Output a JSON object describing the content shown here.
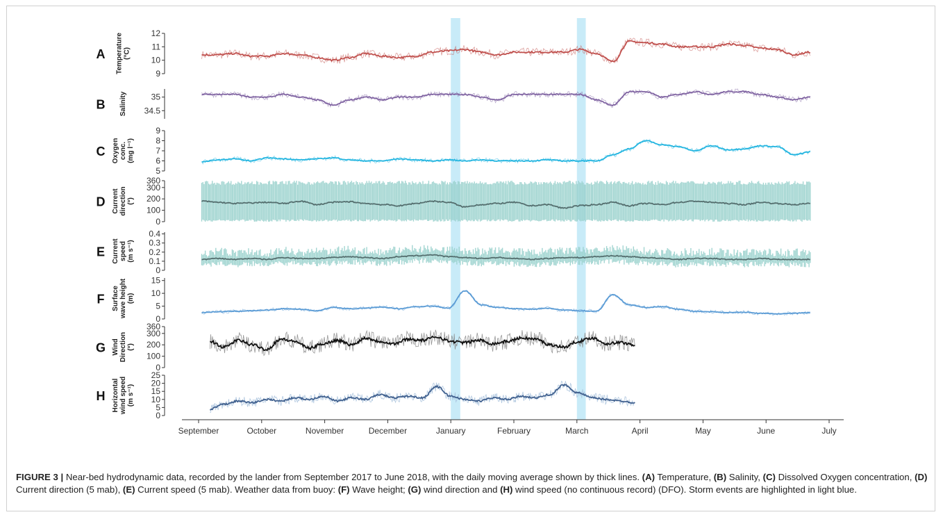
{
  "chart_data": {
    "type": "line",
    "x_axis": {
      "ticks": [
        "September",
        "October",
        "November",
        "December",
        "January",
        "February",
        "March",
        "April",
        "May",
        "June",
        "July"
      ]
    },
    "highlights": [
      {
        "start": 4.0,
        "end": 4.15,
        "color": "#b6e4f6"
      },
      {
        "start": 6.0,
        "end": 6.14,
        "color": "#b6e4f6"
      }
    ],
    "panels": [
      {
        "letter": "A",
        "ylabel": [
          "Temperature",
          "(°C)"
        ],
        "ylim": [
          9,
          12
        ],
        "ticks": [
          9,
          10,
          11,
          12
        ],
        "color": "#c0504d",
        "noise": 0.35,
        "end": 9.7,
        "start": 0.05,
        "values": [
          10.4,
          10.4,
          10.5,
          10.3,
          10.3,
          10.5,
          10.4,
          10.2,
          10.0,
          10.2,
          10.5,
          10.3,
          10.2,
          10.3,
          10.6,
          10.7,
          10.8,
          10.6,
          10.4,
          10.6,
          10.6,
          10.6,
          10.6,
          10.8,
          10.5,
          9.9,
          11.4,
          11.3,
          11.2,
          11.0,
          11.0,
          11.0,
          11.2,
          11.1,
          10.9,
          10.8,
          10.4,
          10.6
        ]
      },
      {
        "letter": "B",
        "ylabel": [
          "Salinity"
        ],
        "ylim": [
          34.2,
          35.3
        ],
        "ticks": [
          34.5,
          35.0
        ],
        "color": "#8064a2",
        "noise": 0.12,
        "end": 9.7,
        "start": 0.05,
        "values": [
          35.1,
          35.1,
          35.1,
          35.0,
          35.0,
          35.1,
          35.0,
          34.9,
          34.7,
          34.9,
          35.0,
          34.9,
          35.0,
          35.0,
          35.1,
          35.1,
          35.1,
          35.0,
          34.9,
          35.1,
          35.1,
          35.1,
          35.1,
          35.1,
          34.9,
          34.7,
          35.2,
          35.2,
          35.0,
          35.1,
          35.2,
          35.1,
          35.2,
          35.2,
          35.1,
          35.0,
          34.9,
          35.0
        ]
      },
      {
        "letter": "C",
        "ylabel": [
          "Oxygen",
          "conc.",
          "(mg l⁻¹)"
        ],
        "ylim": [
          5,
          9
        ],
        "ticks": [
          5,
          6,
          7,
          8,
          9
        ],
        "color": "#23b5e0",
        "noise": 0.25,
        "end": 9.7,
        "start": 0.05,
        "values": [
          5.9,
          6.1,
          6.2,
          6.0,
          6.3,
          6.2,
          6.1,
          6.2,
          6.3,
          6.1,
          6.0,
          6.0,
          6.2,
          6.1,
          6.0,
          6.1,
          6.0,
          6.1,
          6.0,
          6.0,
          6.0,
          6.1,
          6.0,
          6.0,
          6.0,
          6.6,
          7.2,
          8.0,
          7.6,
          7.4,
          7.0,
          7.5,
          7.1,
          7.2,
          7.5,
          7.4,
          6.6,
          6.9
        ]
      },
      {
        "letter": "D",
        "ylabel": [
          "Current",
          "direction",
          "(°)"
        ],
        "ylim": [
          0,
          360
        ],
        "ticks": [
          0,
          100,
          200,
          300,
          360
        ],
        "color": "#546e6e",
        "band": "#98d0cc",
        "noise": 30,
        "end": 9.7,
        "start": 0.05,
        "values": [
          180,
          170,
          160,
          165,
          170,
          160,
          180,
          150,
          170,
          175,
          160,
          150,
          140,
          160,
          180,
          170,
          130,
          150,
          160,
          170,
          140,
          150,
          120,
          140,
          150,
          170,
          140,
          160,
          150,
          170,
          180,
          170,
          160,
          150,
          170,
          160,
          150,
          160
        ]
      },
      {
        "letter": "E",
        "ylabel": [
          "Current",
          "speed",
          "(m s⁻¹)"
        ],
        "ylim": [
          0,
          0.42
        ],
        "ticks": [
          0,
          0.1,
          0.2,
          0.3,
          0.4
        ],
        "color": "#546e6e",
        "band": "#98d0cc",
        "noise": 0.03,
        "end": 9.7,
        "start": 0.05,
        "values": [
          0.12,
          0.13,
          0.12,
          0.13,
          0.12,
          0.14,
          0.13,
          0.13,
          0.14,
          0.15,
          0.14,
          0.13,
          0.15,
          0.16,
          0.17,
          0.15,
          0.14,
          0.13,
          0.14,
          0.13,
          0.12,
          0.13,
          0.14,
          0.14,
          0.15,
          0.16,
          0.15,
          0.14,
          0.13,
          0.12,
          0.13,
          0.13,
          0.12,
          0.12,
          0.13,
          0.12,
          0.12,
          0.12
        ]
      },
      {
        "letter": "F",
        "ylabel": [
          "Surface",
          "wave height",
          "(m)"
        ],
        "ylim": [
          0,
          16
        ],
        "ticks": [
          0,
          5,
          10,
          15
        ],
        "color": "#5a9bd5",
        "noise": 0.8,
        "end": 9.7,
        "start": 0.05,
        "values": [
          2.5,
          2.8,
          3.0,
          3.2,
          3.5,
          4.0,
          3.8,
          3.2,
          4.5,
          4.0,
          4.2,
          4.6,
          4.0,
          4.8,
          5.0,
          4.2,
          11.0,
          5.5,
          4.5,
          4.0,
          3.8,
          4.2,
          3.5,
          3.2,
          3.0,
          9.5,
          5.5,
          4.5,
          4.8,
          3.8,
          3.0,
          2.8,
          2.5,
          2.6,
          2.2,
          2.0,
          2.2,
          2.5
        ]
      },
      {
        "letter": "G",
        "ylabel": [
          "Wind",
          "Direction",
          "(°)"
        ],
        "ylim": [
          0,
          360
        ],
        "ticks": [
          0,
          100,
          200,
          300,
          360
        ],
        "color": "#111111",
        "raw": "#8c8c8c",
        "noise": 70,
        "end": 6.92,
        "start": 0.18,
        "values": [
          230,
          180,
          240,
          200,
          160,
          250,
          230,
          170,
          210,
          240,
          200,
          260,
          230,
          210,
          250,
          240,
          270,
          230,
          220,
          240,
          210,
          230,
          260,
          250,
          200,
          180,
          230,
          260,
          210,
          220,
          200
        ]
      },
      {
        "letter": "H",
        "ylabel": [
          "Horizontal",
          "wind speed",
          "(m s⁻¹)"
        ],
        "ylim": [
          0,
          25
        ],
        "ticks": [
          0,
          5,
          10,
          15,
          20,
          25
        ],
        "color": "#41618f",
        "raw": "#a8c2dd",
        "noise": 3,
        "end": 6.92,
        "start": 0.18,
        "values": [
          4,
          7,
          9,
          8,
          10,
          9,
          11,
          10,
          12,
          9,
          11,
          10,
          13,
          11,
          12,
          11,
          18,
          12,
          10,
          9,
          11,
          10,
          12,
          11,
          13,
          19,
          14,
          11,
          10,
          9,
          8
        ]
      }
    ]
  },
  "caption": {
    "fig_label": "FIGURE 3 |",
    "t1": " Near-bed hydrodynamic data, recorded by the lander from September 2017 to June 2018, with the daily moving average shown by thick lines. ",
    "a": "(A)",
    "t2": " Temperature, ",
    "b": "(B)",
    "t3": " Salinity, ",
    "c": "(C)",
    "t4": " Dissolved Oxygen concentration, ",
    "d": "(D)",
    "t5": " Current direction (5 mab), ",
    "e": "(E)",
    "t6": " Current speed (5 mab). Weather data from buoy: ",
    "f": "(F)",
    "t7": " Wave height; ",
    "g": "(G)",
    "t8": " wind direction and ",
    "h": "(H)",
    "t9": " wind speed (no continuous record) (DFO). Storm events are highlighted in light blue."
  }
}
